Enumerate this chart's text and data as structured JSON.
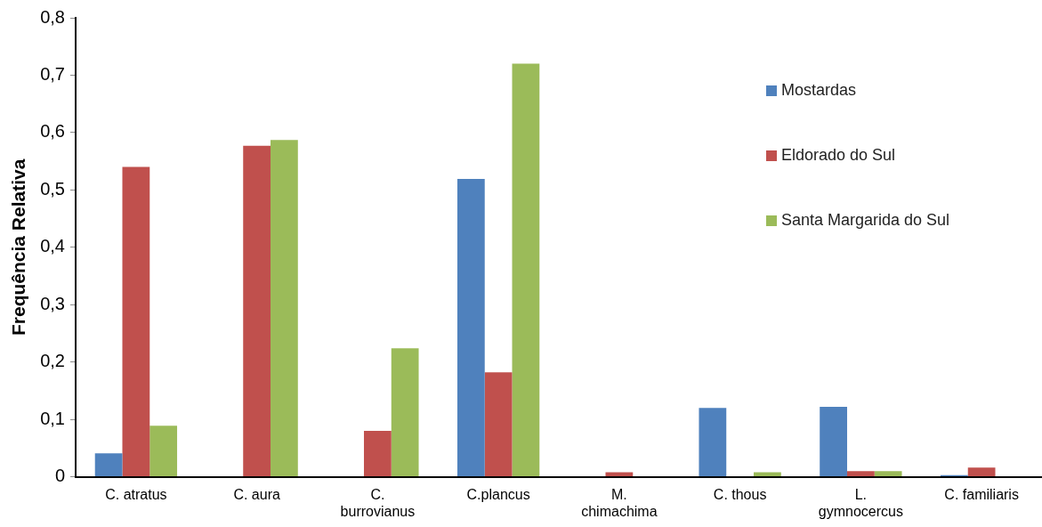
{
  "chart_data": {
    "type": "bar",
    "ylabel": "Frequência Relativa",
    "categories": [
      "C. atratus",
      "C. aura",
      "C.\nburrovianus",
      "C.plancus",
      "M.\nchimachima",
      "C. thous",
      "L.\ngymnocercus",
      "C. familiaris"
    ],
    "series": [
      {
        "name": "Mostardas",
        "color": "#4f81bd",
        "values": [
          0.041,
          0,
          0,
          0.519,
          0,
          0.12,
          0.122,
          0.003
        ]
      },
      {
        "name": "Eldorado do Sul",
        "color": "#c0504d",
        "values": [
          0.54,
          0.577,
          0.08,
          0.182,
          0.008,
          0,
          0.01,
          0.016
        ]
      },
      {
        "name": "Santa Margarida do Sul",
        "color": "#9bbb59",
        "values": [
          0.089,
          0.587,
          0.224,
          0.72,
          0,
          0.008,
          0.01,
          0
        ]
      }
    ],
    "ylim": [
      0,
      0.8
    ],
    "yticks": [
      {
        "value": 0,
        "label": "0"
      },
      {
        "value": 0.1,
        "label": "0,1"
      },
      {
        "value": 0.2,
        "label": "0,2"
      },
      {
        "value": 0.3,
        "label": "0,3"
      },
      {
        "value": 0.4,
        "label": "0,4"
      },
      {
        "value": 0.5,
        "label": "0,5"
      },
      {
        "value": 0.6,
        "label": "0,6"
      },
      {
        "value": 0.7,
        "label": "0,7"
      },
      {
        "value": 0.8,
        "label": "0,8"
      }
    ],
    "grid": false,
    "legend": "top right"
  }
}
